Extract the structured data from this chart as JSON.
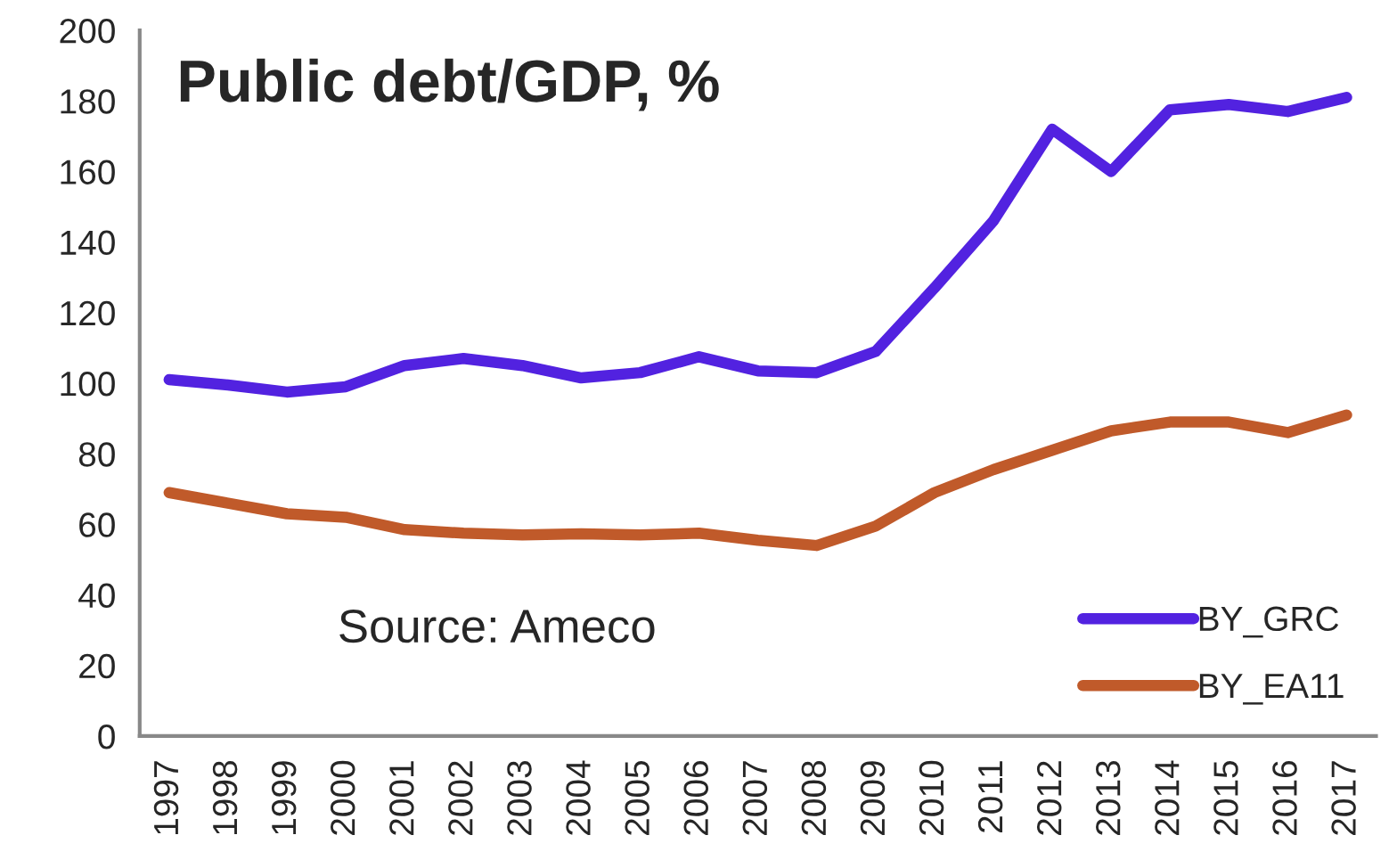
{
  "chart_data": {
    "type": "line",
    "title": "Public debt/GDP, %",
    "categories": [
      "1997",
      "1998",
      "1999",
      "2000",
      "2001",
      "2002",
      "2003",
      "2004",
      "2005",
      "2006",
      "2007",
      "2008",
      "2009",
      "2010",
      "2011",
      "2012",
      "2013",
      "2014",
      "2015",
      "2016",
      "2017"
    ],
    "series": [
      {
        "name": "BY_GRC",
        "color": "#5222e0",
        "values": [
          101,
          99.5,
          97.5,
          99,
          105,
          107,
          105,
          101.5,
          103,
          107.5,
          103.5,
          103,
          109,
          127,
          146,
          172,
          160,
          177.5,
          179,
          177,
          181
        ]
      },
      {
        "name": "BY_EA11",
        "color": "#c05a2a",
        "values": [
          69,
          66,
          63,
          62,
          58.5,
          57.5,
          57,
          57.3,
          57,
          57.5,
          55.5,
          54,
          59.5,
          69,
          75.5,
          81,
          86.5,
          89,
          89,
          86,
          91
        ]
      }
    ],
    "ylim": [
      0,
      200
    ],
    "yticks": [
      0,
      20,
      40,
      60,
      80,
      100,
      120,
      140,
      160,
      180,
      200
    ],
    "annotations": [
      "Source: Ameco"
    ],
    "legend": "bottom right",
    "grid": false,
    "marker": "none",
    "line_style": "solid"
  }
}
